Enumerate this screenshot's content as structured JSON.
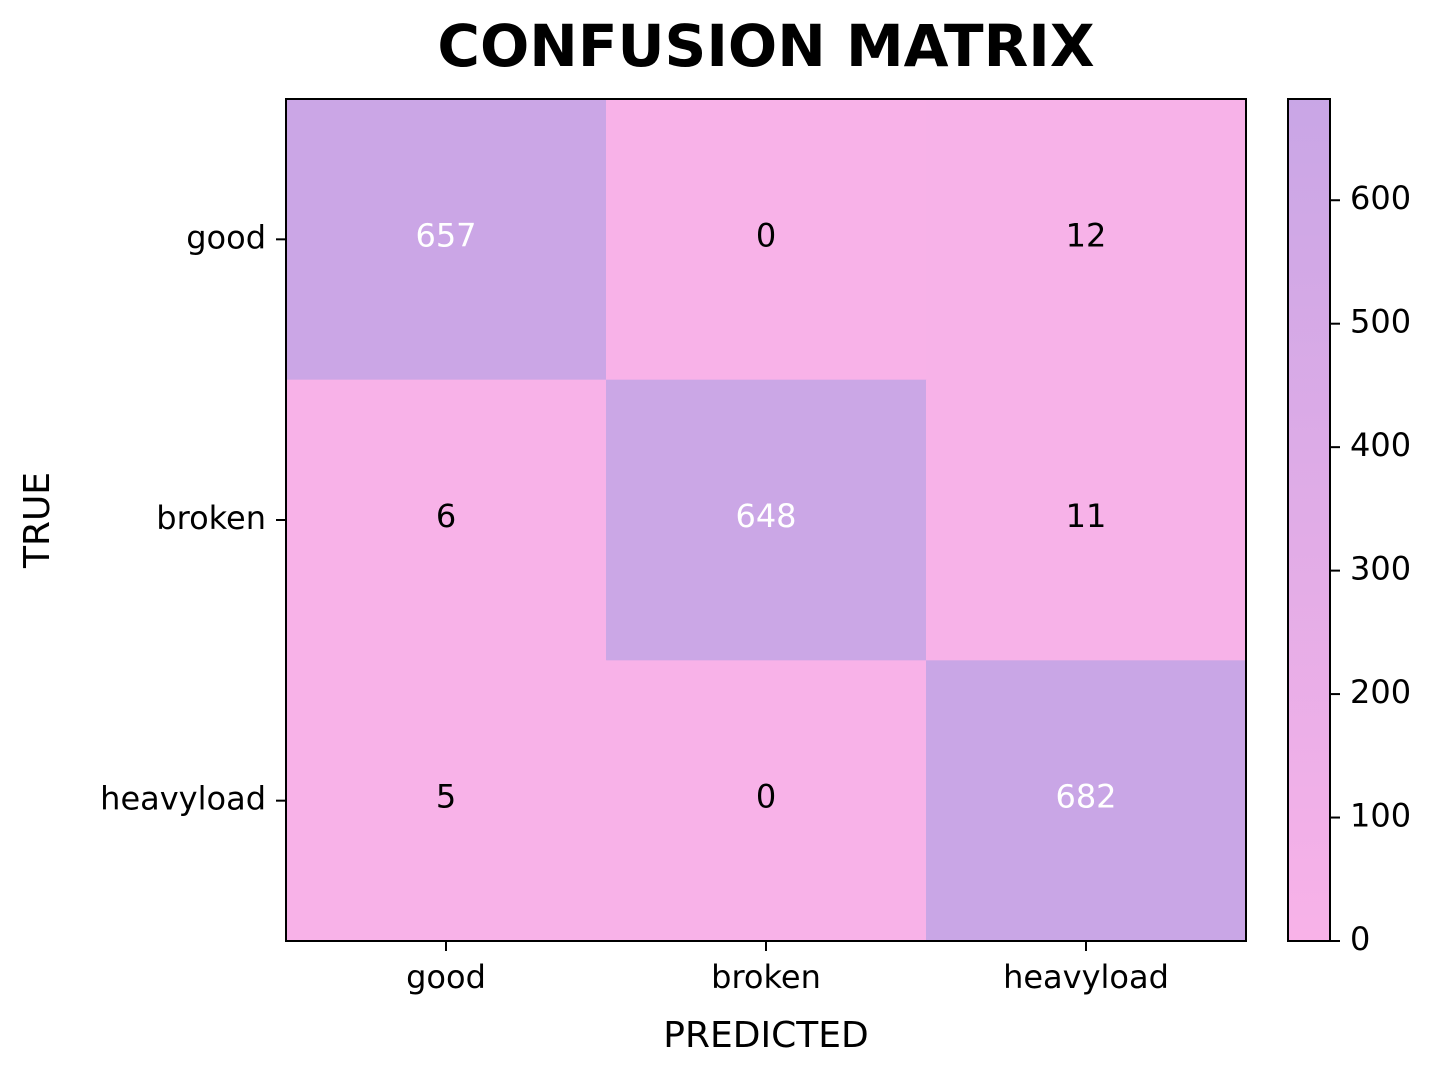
{
  "chart_data": {
    "type": "heatmap",
    "title": "CONFUSION MATRIX",
    "xlabel": "PREDICTED",
    "ylabel": "TRUE",
    "x_categories": [
      "good",
      "broken",
      "heavyload"
    ],
    "y_categories": [
      "good",
      "broken",
      "heavyload"
    ],
    "values": [
      [
        657,
        0,
        12
      ],
      [
        6,
        648,
        11
      ],
      [
        5,
        0,
        682
      ]
    ],
    "colorbar": {
      "min": 0,
      "max": 682,
      "ticks": [
        0,
        100,
        200,
        300,
        400,
        500,
        600
      ],
      "color_low": "#f8b2e8",
      "color_high": "#c9a6e6"
    },
    "text_color_dark": "#000000",
    "text_color_light": "#ffffff"
  }
}
